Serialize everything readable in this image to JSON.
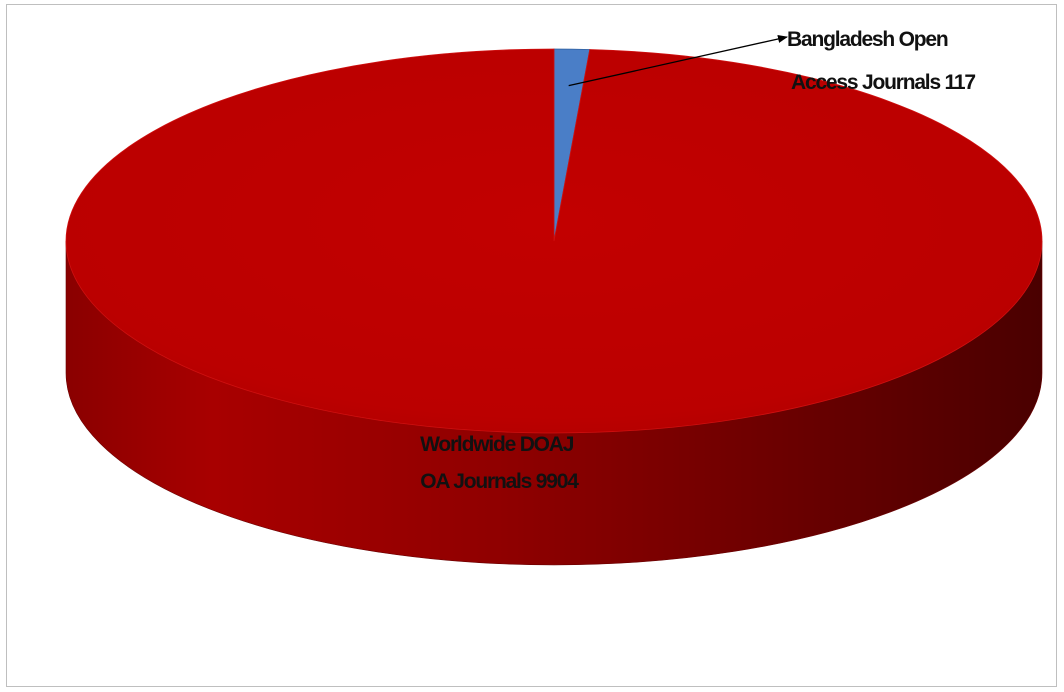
{
  "chart_data": {
    "type": "pie",
    "style": "3d",
    "slices": [
      {
        "name": "Bangladesh Open Access Journals",
        "value": 117,
        "color": "#4A7EC7",
        "label_lines": [
          "Bangladesh Open",
          "Access Journals  117"
        ]
      },
      {
        "name": "Worldwide DOAJ OA Journals",
        "value": 9904,
        "color": "#C00000",
        "label_lines": [
          "Worldwide DOAJ",
          "OA Journals 9904"
        ]
      }
    ],
    "legend": "none"
  }
}
